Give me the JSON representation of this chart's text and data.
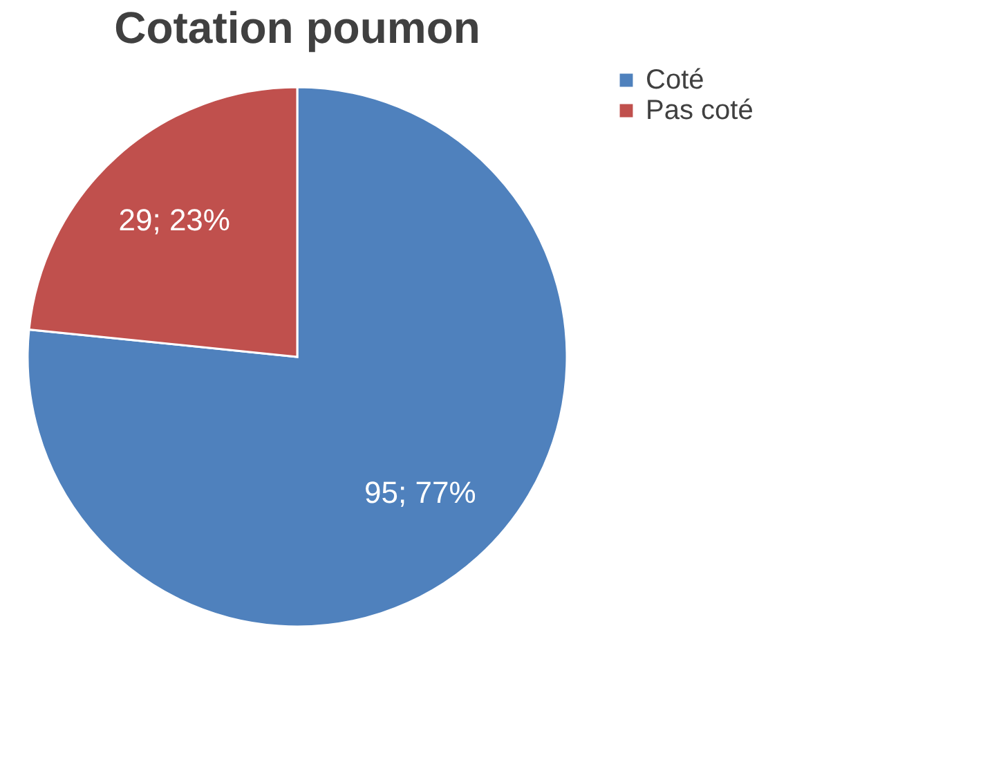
{
  "chart_data": {
    "type": "pie",
    "title": "Cotation poumon",
    "categories": [
      "Coté",
      "Pas coté"
    ],
    "values": [
      95,
      29
    ],
    "colors": [
      "#4f81bd",
      "#c0504d"
    ],
    "value_labels": [
      "95; 77%",
      "29; 23%"
    ],
    "legend": "right"
  }
}
